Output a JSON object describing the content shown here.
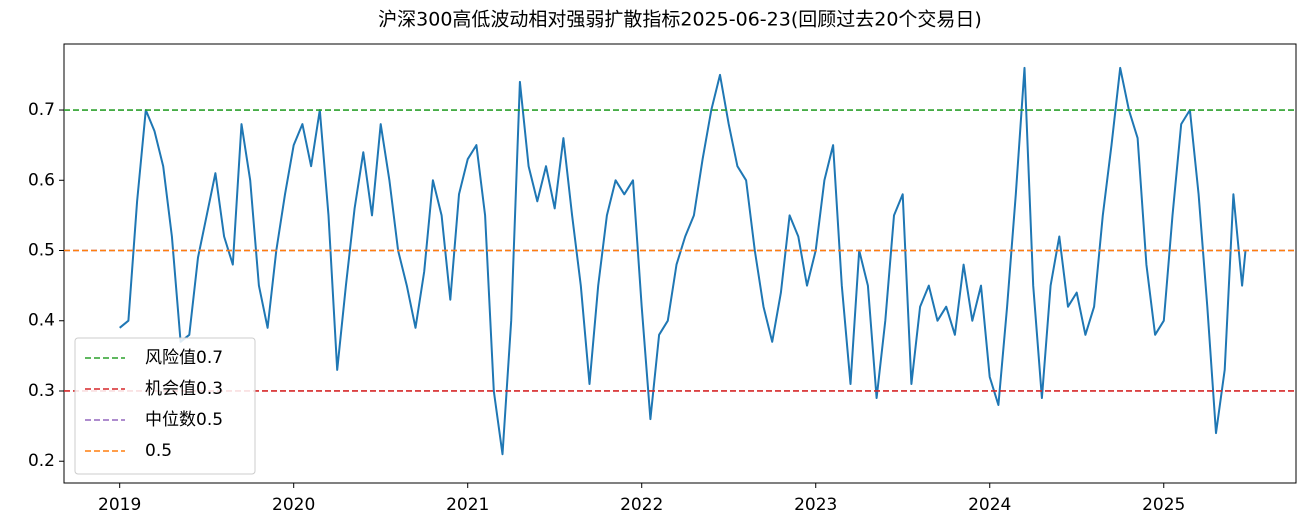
{
  "chart_data": {
    "type": "line",
    "title": "沪深300高低波动相对强弱扩散指标2025-06-23(回顾过去20个交易日)",
    "x": [
      2019.0,
      2019.05,
      2019.1,
      2019.15,
      2019.2,
      2019.25,
      2019.3,
      2019.35,
      2019.4,
      2019.45,
      2019.5,
      2019.55,
      2019.6,
      2019.65,
      2019.7,
      2019.75,
      2019.8,
      2019.85,
      2019.9,
      2019.95,
      2020.0,
      2020.05,
      2020.1,
      2020.15,
      2020.2,
      2020.25,
      2020.3,
      2020.35,
      2020.4,
      2020.45,
      2020.5,
      2020.55,
      2020.6,
      2020.65,
      2020.7,
      2020.75,
      2020.8,
      2020.85,
      2020.9,
      2020.95,
      2021.0,
      2021.05,
      2021.1,
      2021.15,
      2021.2,
      2021.25,
      2021.3,
      2021.35,
      2021.4,
      2021.45,
      2021.5,
      2021.55,
      2021.6,
      2021.65,
      2021.7,
      2021.75,
      2021.8,
      2021.85,
      2021.9,
      2021.95,
      2022.0,
      2022.05,
      2022.1,
      2022.15,
      2022.2,
      2022.25,
      2022.3,
      2022.35,
      2022.4,
      2022.45,
      2022.5,
      2022.55,
      2022.6,
      2022.65,
      2022.7,
      2022.75,
      2022.8,
      2022.85,
      2022.9,
      2022.95,
      2023.0,
      2023.05,
      2023.1,
      2023.15,
      2023.2,
      2023.25,
      2023.3,
      2023.35,
      2023.4,
      2023.45,
      2023.5,
      2023.55,
      2023.6,
      2023.65,
      2023.7,
      2023.75,
      2023.8,
      2023.85,
      2023.9,
      2023.95,
      2024.0,
      2024.05,
      2024.1,
      2024.15,
      2024.2,
      2024.25,
      2024.3,
      2024.35,
      2024.4,
      2024.45,
      2024.5,
      2024.55,
      2024.6,
      2024.65,
      2024.7,
      2024.75,
      2024.8,
      2024.85,
      2024.9,
      2024.95,
      2025.0,
      2025.05,
      2025.1,
      2025.15,
      2025.2,
      2025.25,
      2025.3,
      2025.35,
      2025.4,
      2025.45,
      2025.47
    ],
    "series": [
      {
        "color": "#1f77b4",
        "values": [
          0.39,
          0.4,
          0.57,
          0.7,
          0.67,
          0.62,
          0.52,
          0.37,
          0.38,
          0.49,
          0.55,
          0.61,
          0.52,
          0.48,
          0.68,
          0.6,
          0.45,
          0.39,
          0.5,
          0.58,
          0.65,
          0.68,
          0.62,
          0.7,
          0.55,
          0.33,
          0.45,
          0.56,
          0.64,
          0.55,
          0.68,
          0.6,
          0.5,
          0.45,
          0.39,
          0.47,
          0.6,
          0.55,
          0.43,
          0.58,
          0.63,
          0.65,
          0.55,
          0.3,
          0.21,
          0.4,
          0.74,
          0.62,
          0.57,
          0.62,
          0.56,
          0.66,
          0.55,
          0.45,
          0.31,
          0.45,
          0.55,
          0.6,
          0.58,
          0.6,
          0.42,
          0.26,
          0.38,
          0.4,
          0.48,
          0.52,
          0.55,
          0.63,
          0.7,
          0.75,
          0.68,
          0.62,
          0.6,
          0.5,
          0.42,
          0.37,
          0.44,
          0.55,
          0.52,
          0.45,
          0.5,
          0.6,
          0.65,
          0.45,
          0.31,
          0.5,
          0.45,
          0.29,
          0.4,
          0.55,
          0.58,
          0.31,
          0.42,
          0.45,
          0.4,
          0.42,
          0.38,
          0.48,
          0.4,
          0.45,
          0.32,
          0.28,
          0.42,
          0.58,
          0.76,
          0.45,
          0.29,
          0.45,
          0.52,
          0.42,
          0.44,
          0.38,
          0.42,
          0.55,
          0.65,
          0.76,
          0.7,
          0.66,
          0.48,
          0.38,
          0.4,
          0.55,
          0.68,
          0.7,
          0.58,
          0.42,
          0.24,
          0.33,
          0.58,
          0.45,
          0.5
        ]
      }
    ],
    "hlines": [
      {
        "name": "风险值0.7",
        "value": 0.7,
        "color": "#2ca02c"
      },
      {
        "name": "机会值0.3",
        "value": 0.3,
        "color": "#d62728"
      },
      {
        "name": "中位数0.5",
        "value": 0.5,
        "color": "#9467bd"
      },
      {
        "name": "0.5",
        "value": 0.5,
        "color": "#ff7f0e"
      }
    ],
    "xlim": [
      2018.68,
      2025.76
    ],
    "xticks": [
      2019,
      2020,
      2021,
      2022,
      2023,
      2024,
      2025
    ],
    "ylim": [
      0.169,
      0.794
    ],
    "yticks": [
      0.2,
      0.3,
      0.4,
      0.5,
      0.6,
      0.7
    ],
    "legend": "lower left"
  }
}
